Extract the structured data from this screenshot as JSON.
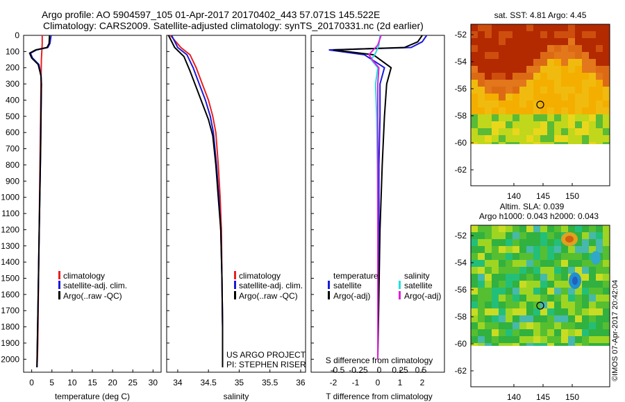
{
  "header": {
    "line1": "Argo profile: AO 5904597_105 01-Apr-2017 20170402_443 57.071S 145.522E",
    "line2": "Climatology: CARS2009. Satellite-adjusted climatology: synTS_20170331.nc (2d earlier)"
  },
  "colors": {
    "climatology": "#e8201e",
    "satellite": "#1a1ad8",
    "argo": "#000000",
    "cyan": "#20e0e0",
    "magenta": "#e020e0",
    "sst_hot": "#a81400",
    "sst_warm": "#f0a000",
    "sla_base": "#40b840"
  },
  "chart_data": [
    {
      "type": "line",
      "id": "temperature",
      "xlabel": "temperature (deg C)",
      "xticks": [
        0,
        5,
        10,
        15,
        20,
        25,
        30
      ],
      "xlim": [
        -2,
        32
      ],
      "ylim": [
        2080,
        0
      ],
      "yticks": [
        0,
        100,
        200,
        300,
        400,
        500,
        600,
        700,
        800,
        900,
        1000,
        1100,
        1200,
        1300,
        1400,
        1500,
        1600,
        1700,
        1800,
        1900,
        2000
      ],
      "legend": [
        "climatology",
        "satellite-adj. clim.",
        "Argo(..raw -QC)"
      ],
      "series": [
        {
          "name": "climatology",
          "x": [
            2.6,
            2.6,
            2.5,
            2.4,
            2.3,
            2.2,
            2.1,
            2.0,
            1.9,
            1.8,
            1.7,
            1.6,
            1.5,
            1.4,
            1.3
          ],
          "y": [
            0,
            50,
            100,
            150,
            300,
            500,
            700,
            900,
            1100,
            1300,
            1500,
            1700,
            1900,
            2000,
            2050
          ]
        },
        {
          "name": "satellite-adj. clim.",
          "x": [
            4.8,
            4.5,
            4.0,
            1.2,
            -0.3,
            0.2,
            1.8,
            2.3,
            2.4,
            2.3,
            2.2,
            2.0,
            1.8,
            1.6,
            1.4,
            1.3
          ],
          "y": [
            0,
            50,
            75,
            90,
            110,
            140,
            180,
            250,
            300,
            500,
            700,
            1000,
            1300,
            1600,
            1900,
            2050
          ]
        },
        {
          "name": "Argo(..raw -QC)",
          "x": [
            4.4,
            4.3,
            3.8,
            1.0,
            -0.5,
            0.0,
            1.6,
            2.3,
            2.4,
            2.3,
            2.2,
            2.0,
            1.8,
            1.6,
            1.4,
            1.3
          ],
          "y": [
            0,
            50,
            75,
            90,
            110,
            140,
            180,
            250,
            300,
            500,
            700,
            1000,
            1300,
            1600,
            1900,
            2050
          ]
        }
      ]
    },
    {
      "type": "line",
      "id": "salinity",
      "xlabel": "salinity",
      "xticks": [
        34,
        34.5,
        35,
        35.5,
        36
      ],
      "xlim": [
        33.82,
        36.08
      ],
      "ylim": [
        2080,
        0
      ],
      "legend": [
        "climatology",
        "satellite-adj. clim.",
        "Argo(..raw -QC)"
      ],
      "annotations": [
        "US ARGO PROJECT",
        "PI: STEPHEN RISER"
      ],
      "series": [
        {
          "name": "climatology",
          "x": [
            33.88,
            34.05,
            34.2,
            34.3,
            34.4,
            34.5,
            34.57,
            34.62,
            34.66,
            34.69,
            34.71,
            34.72,
            34.73,
            34.73
          ],
          "y": [
            0,
            75,
            120,
            200,
            300,
            400,
            500,
            600,
            800,
            1000,
            1200,
            1500,
            1800,
            2050
          ]
        },
        {
          "name": "satellite-adj. clim.",
          "x": [
            33.9,
            34.0,
            34.15,
            34.25,
            34.35,
            34.45,
            34.53,
            34.58,
            34.63,
            34.67,
            34.7,
            34.72,
            34.73,
            34.73
          ],
          "y": [
            0,
            75,
            120,
            200,
            300,
            400,
            500,
            600,
            800,
            1000,
            1200,
            1500,
            1800,
            2050
          ]
        },
        {
          "name": "Argo(..raw -QC)",
          "x": [
            33.85,
            33.95,
            34.1,
            34.2,
            34.3,
            34.4,
            34.5,
            34.57,
            34.62,
            34.66,
            34.7,
            34.72,
            34.73,
            34.73
          ],
          "y": [
            0,
            75,
            130,
            220,
            320,
            420,
            520,
            620,
            800,
            1000,
            1200,
            1500,
            1800,
            2050
          ]
        }
      ]
    },
    {
      "type": "line",
      "id": "difference",
      "xlabel": "T difference from climatology",
      "xlabel_top": "S difference from climatology",
      "xticks": [
        -2,
        -1,
        0,
        1,
        2
      ],
      "sticks": [
        -0.5,
        -0.25,
        0,
        0.25,
        0.5
      ],
      "sticks_label": [
        "-0.5",
        "-0.25",
        "0",
        "0.25",
        "0.5"
      ],
      "xlim": [
        -3,
        3
      ],
      "legend_temperature": [
        "temperature",
        "satellite",
        "Argo(-adj)"
      ],
      "legend_salinity": [
        "salinity",
        "satellite",
        "Argo(-adj)"
      ],
      "series": [
        {
          "name": "temperature satellite",
          "x": [
            2.2,
            2.0,
            1.5,
            -2.2,
            -0.6,
            0.3,
            0.1,
            0.1,
            0.05,
            0.05,
            0.0,
            0.0
          ],
          "y": [
            0,
            40,
            75,
            90,
            120,
            200,
            300,
            500,
            800,
            1200,
            1600,
            2000
          ]
        },
        {
          "name": "temperature Argo(-adj)",
          "x": [
            2.0,
            1.8,
            1.2,
            -2.0,
            -0.2,
            0.6,
            0.4,
            0.3,
            0.2,
            0.1,
            0.05,
            0.0
          ],
          "y": [
            0,
            40,
            75,
            90,
            120,
            200,
            300,
            500,
            800,
            1200,
            1600,
            2000
          ]
        },
        {
          "name": "salinity satellite",
          "x": [
            0.1,
            0.05,
            -0.1,
            -0.3,
            0.0,
            -0.1,
            -0.05,
            -0.02,
            0.0,
            0.0,
            0.0
          ],
          "y": [
            0,
            60,
            110,
            150,
            200,
            300,
            500,
            800,
            1200,
            1600,
            2000
          ]
        },
        {
          "name": "salinity Argo(-adj)",
          "x": [
            0.15,
            0.0,
            -0.4,
            -0.2,
            0.05,
            0.0,
            0.0,
            0.0,
            0.0,
            0.0
          ],
          "y": [
            0,
            60,
            120,
            160,
            200,
            300,
            500,
            1000,
            1500,
            2000
          ]
        }
      ]
    }
  ],
  "map_sst": {
    "title": "sat. SST: 4.81  Argo: 4.45",
    "yticks": [
      "-52",
      "-54",
      "-56",
      "-58",
      "-60",
      "-62"
    ],
    "xticks": [
      "140",
      "145",
      "150"
    ]
  },
  "map_sla": {
    "title1": "Altim. SLA: 0.039",
    "title2": "Argo h1000: 0.043 h2000: 0.043",
    "yticks": [
      "-52",
      "-54",
      "-56",
      "-58",
      "-60",
      "-62"
    ],
    "xticks": [
      "140",
      "145",
      "150"
    ]
  },
  "credit": "©IMOS 07-Apr-2017 20:42:04"
}
